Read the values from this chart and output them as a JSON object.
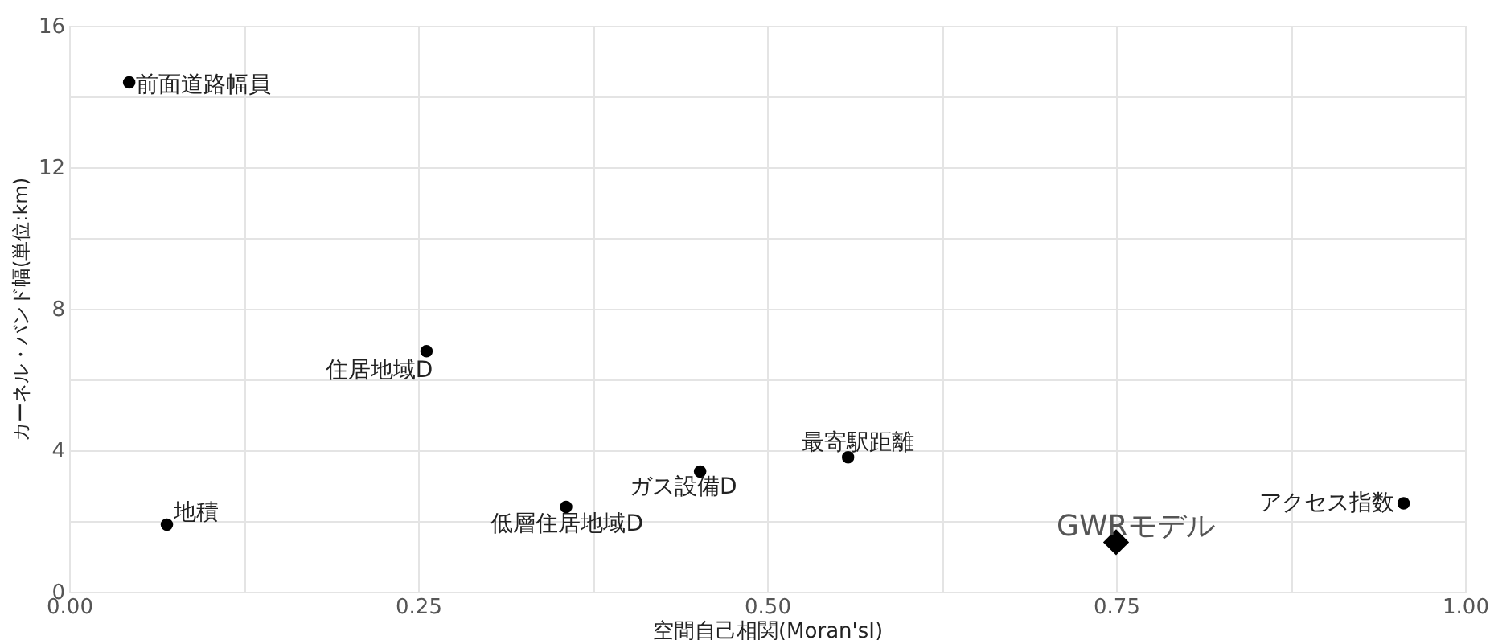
{
  "chart_data": {
    "type": "scatter",
    "xlabel": "空間自己相関(Moran'sI)",
    "ylabel": "カーネル・バンド幅(単位:km)",
    "xlim": [
      0,
      1
    ],
    "ylim": [
      0,
      16
    ],
    "xticks": [
      {
        "value": 0,
        "label": "0.00"
      },
      {
        "value": 0.125,
        "label": null
      },
      {
        "value": 0.25,
        "label": "0.25"
      },
      {
        "value": 0.375,
        "label": null
      },
      {
        "value": 0.5,
        "label": "0.50"
      },
      {
        "value": 0.625,
        "label": null
      },
      {
        "value": 0.75,
        "label": "0.75"
      },
      {
        "value": 0.875,
        "label": null
      },
      {
        "value": 1,
        "label": "1.00"
      }
    ],
    "yticks": [
      0,
      {
        "value": 2,
        "label": null
      },
      4,
      {
        "value": 6,
        "label": null
      },
      8,
      {
        "value": 10,
        "label": null
      },
      12,
      {
        "value": 14,
        "label": null
      },
      16
    ],
    "grid": true,
    "series": [
      {
        "color": "#000000",
        "marker": "circle",
        "x": [
          0.043,
          0.256,
          0.07,
          0.356,
          0.452,
          0.558,
          0.956
        ],
        "values": [
          14.4,
          6.8,
          1.9,
          2.4,
          3.4,
          3.8,
          2.5
        ]
      },
      {
        "color": "#000000",
        "marker": "diamond",
        "x": [
          0.75
        ],
        "values": [
          1.4
        ]
      }
    ],
    "annotations": [
      {
        "text": "前面道路幅員",
        "x": 0.043,
        "y": 14.4
      },
      {
        "text": "住居地域D",
        "x": 0.256,
        "y": 6.8
      },
      {
        "text": "地積",
        "x": 0.07,
        "y": 1.9
      },
      {
        "text": "低層住居地域D",
        "x": 0.356,
        "y": 2.4
      },
      {
        "text": "ガス設備D",
        "x": 0.452,
        "y": 3.4
      },
      {
        "text": "最寄駅距離",
        "x": 0.558,
        "y": 3.8
      },
      {
        "text": "アクセス指数",
        "x": 0.956,
        "y": 2.5
      },
      {
        "text": "GWRモデル",
        "x": 0.75,
        "y": 1.4
      }
    ]
  }
}
